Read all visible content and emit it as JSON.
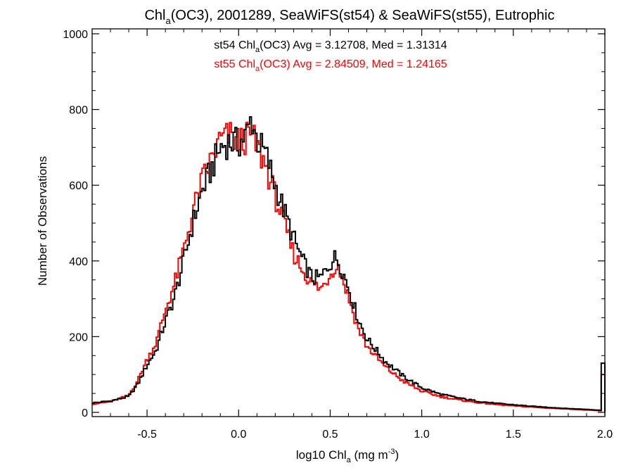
{
  "chart_data": {
    "type": "line",
    "title": {
      "pre": "Chl",
      "sub": "a",
      "post": "(OC3), 2001289, SeaWiFS(st54) & SeaWiFS(st55), Eutrophic"
    },
    "xlabel": {
      "pre": "log10 Chl",
      "sub": "a",
      "mid": " (mg m",
      "sup": "-3",
      "post": ")"
    },
    "ylabel": "Number of Observations",
    "xlim": [
      -0.8,
      2.0
    ],
    "ylim": [
      0,
      1000
    ],
    "xticks": [
      -0.5,
      0.0,
      0.5,
      1.0,
      1.5,
      2.0
    ],
    "xtick_labels": [
      "-0.5",
      "0.0",
      "0.5",
      "1.0",
      "1.5",
      "2.0"
    ],
    "yticks": [
      0,
      200,
      400,
      600,
      800,
      1000
    ],
    "ytick_labels": [
      "0",
      "200",
      "400",
      "600",
      "800",
      "1000"
    ],
    "grid": false,
    "legend_position": "top-center",
    "step_style": "histogram",
    "x": [
      -0.8,
      -0.7,
      -0.6,
      -0.55,
      -0.5,
      -0.45,
      -0.4,
      -0.35,
      -0.3,
      -0.25,
      -0.2,
      -0.15,
      -0.1,
      -0.05,
      0.0,
      0.05,
      0.07,
      0.1,
      0.15,
      0.2,
      0.25,
      0.3,
      0.35,
      0.4,
      0.45,
      0.5,
      0.53,
      0.55,
      0.6,
      0.65,
      0.7,
      0.8,
      0.9,
      1.0,
      1.1,
      1.2,
      1.3,
      1.4,
      1.5,
      1.6,
      1.7,
      1.8,
      1.9,
      1.99,
      2.0
    ],
    "series": [
      {
        "name": "st54",
        "color": "#000000",
        "legend": {
          "pre": "st54 Chl",
          "sub": "a",
          "post": "(OC3) Avg = 3.12708, Med = 1.31314"
        },
        "values": [
          25,
          30,
          42,
          75,
          125,
          165,
          240,
          305,
          400,
          500,
          585,
          640,
          700,
          715,
          710,
          740,
          780,
          720,
          680,
          600,
          530,
          460,
          400,
          355,
          355,
          395,
          410,
          395,
          330,
          250,
          195,
          135,
          95,
          65,
          48,
          38,
          30,
          24,
          20,
          16,
          13,
          10,
          8,
          5,
          130
        ]
      },
      {
        "name": "st55",
        "color": "#ff0000",
        "legend": {
          "pre": "st55 Chl",
          "sub": "a",
          "post": "(OC3) Avg = 2.84509, Med = 1.24165"
        },
        "values": [
          22,
          28,
          45,
          85,
          140,
          185,
          270,
          340,
          430,
          530,
          610,
          665,
          720,
          730,
          715,
          725,
          735,
          700,
          650,
          570,
          495,
          420,
          375,
          340,
          325,
          365,
          390,
          380,
          305,
          225,
          175,
          120,
          82,
          56,
          42,
          33,
          26,
          21,
          17,
          14,
          11,
          9,
          6,
          4,
          100
        ]
      }
    ]
  }
}
